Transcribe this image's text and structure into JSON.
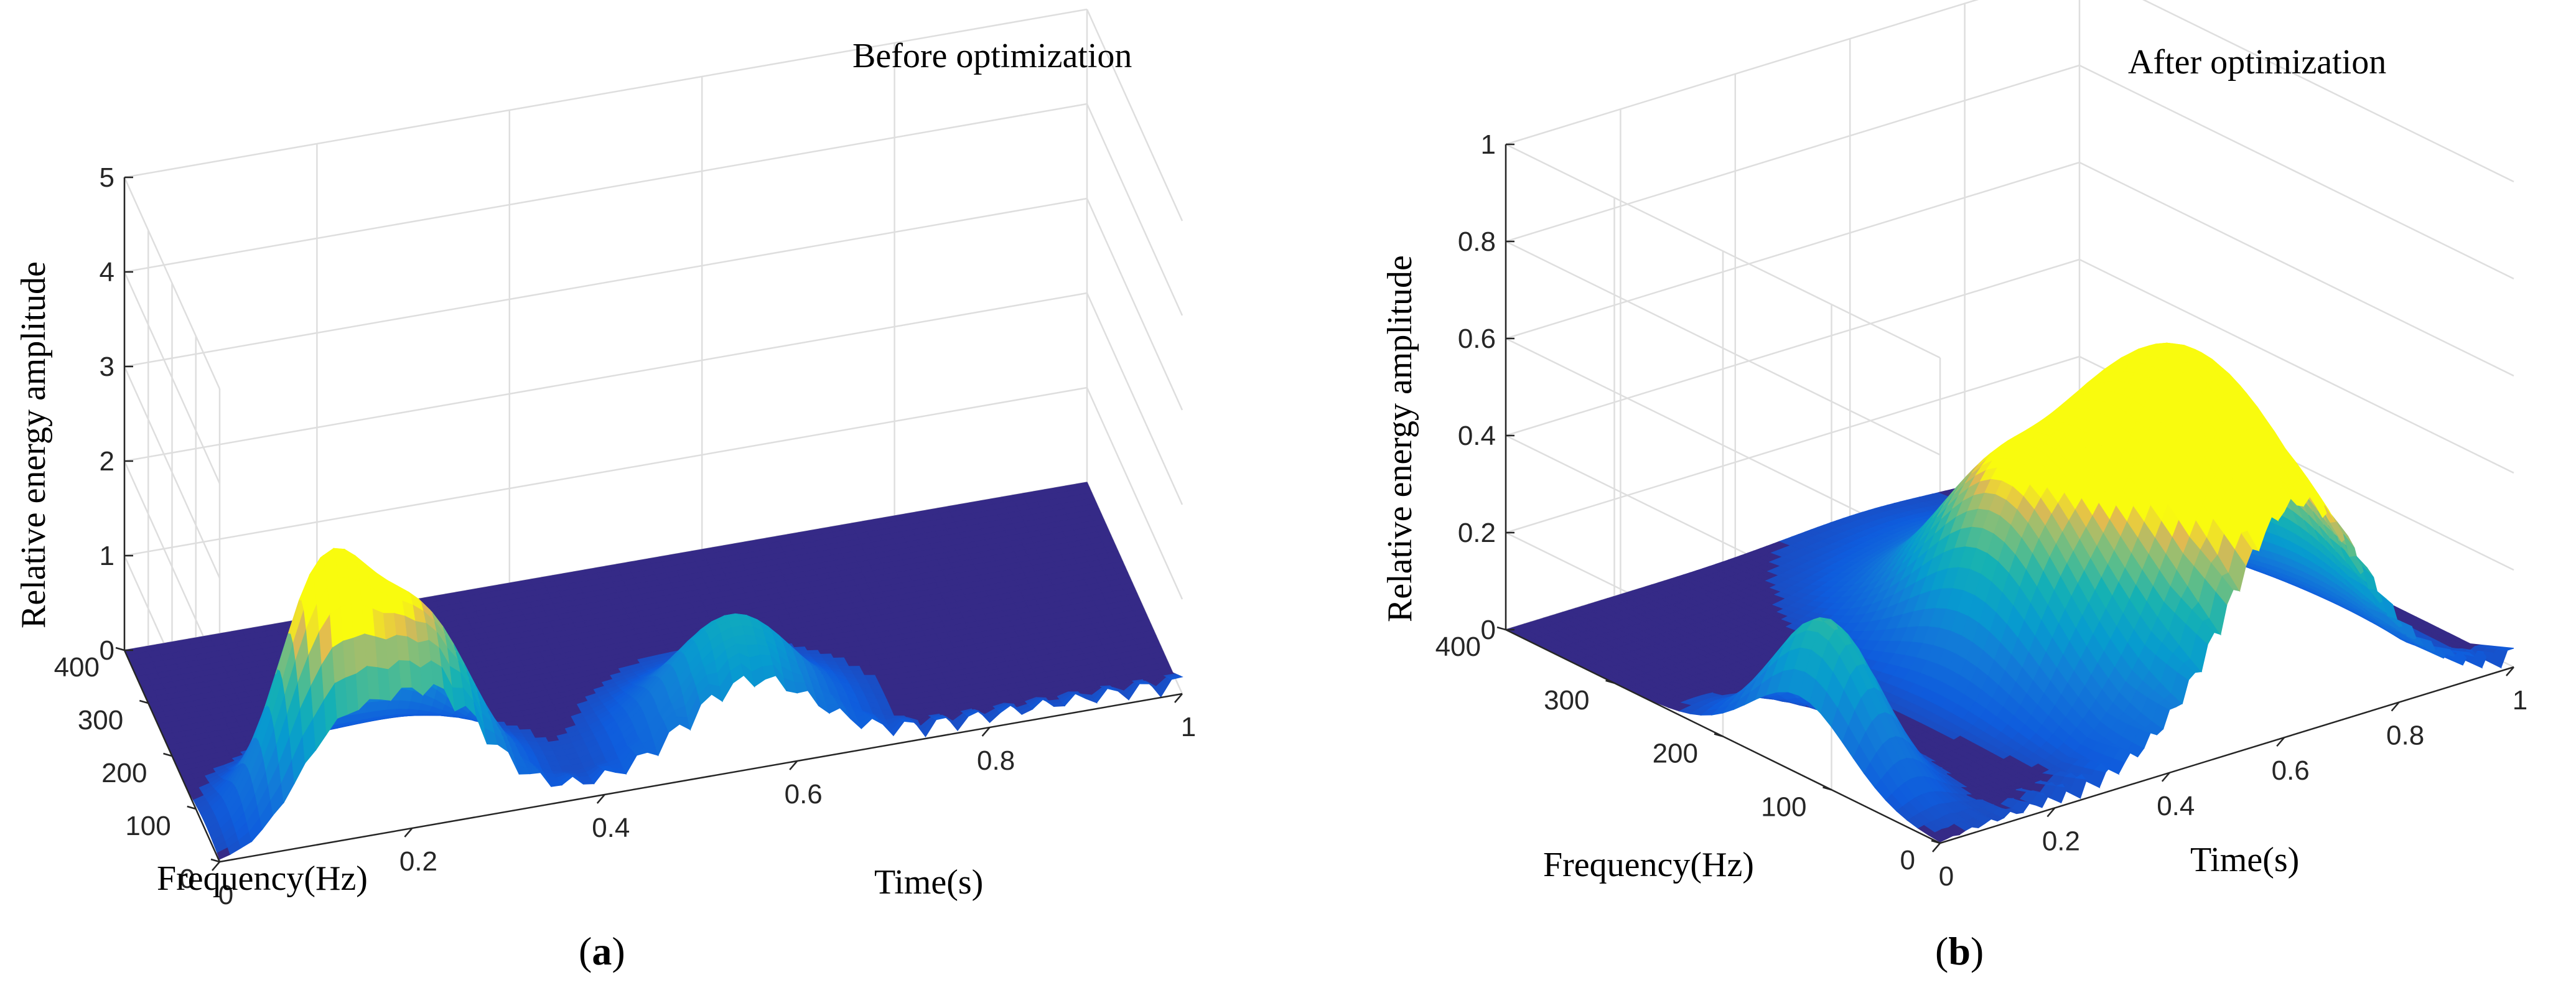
{
  "chart_data": [
    {
      "type": "surface",
      "panel_label": "a",
      "title": "Before optimization",
      "xlabel": "Time(s)",
      "ylabel": "Frequency(Hz)",
      "zlabel": "Relative energy amplitude",
      "xlim": [
        0,
        1
      ],
      "ylim": [
        0,
        400
      ],
      "zlim": [
        0,
        5
      ],
      "xticks": [
        "0",
        "0.2",
        "0.4",
        "0.6",
        "0.8",
        "1"
      ],
      "yticks": [
        "0",
        "100",
        "200",
        "300",
        "400"
      ],
      "zticks": [
        "0",
        "1",
        "2",
        "3",
        "4",
        "5"
      ],
      "grid": true,
      "colormap": "parula",
      "peaks": [
        {
          "time": 0.12,
          "frequency": 60,
          "amplitude": 2.3
        },
        {
          "time": 0.22,
          "frequency": 50,
          "amplitude": 1.9
        },
        {
          "time": 0.55,
          "frequency": 60,
          "amplitude": 1.25
        }
      ]
    },
    {
      "type": "surface",
      "panel_label": "b",
      "title": "After optimization",
      "xlabel": "Time(s)",
      "ylabel": "Frequency(Hz)",
      "zlabel": "Relative energy amplitude",
      "xlim": [
        0,
        1
      ],
      "ylim": [
        0,
        400
      ],
      "zlim": [
        0,
        1
      ],
      "xticks": [
        "0",
        "0.2",
        "0.4",
        "0.6",
        "0.8",
        "1"
      ],
      "yticks": [
        "0",
        "100",
        "200",
        "300",
        "400"
      ],
      "zticks": [
        "0",
        "0.2",
        "0.4",
        "0.6",
        "0.8",
        "1"
      ],
      "grid": true,
      "colormap": "parula",
      "peaks": [
        {
          "time": 0.05,
          "frequency": 130,
          "amplitude": 0.3
        },
        {
          "time": 0.38,
          "frequency": 150,
          "amplitude": 0.16
        },
        {
          "time": 0.45,
          "frequency": 180,
          "amplitude": 0.2
        },
        {
          "time": 0.62,
          "frequency": 100,
          "amplitude": 0.68
        }
      ]
    }
  ]
}
